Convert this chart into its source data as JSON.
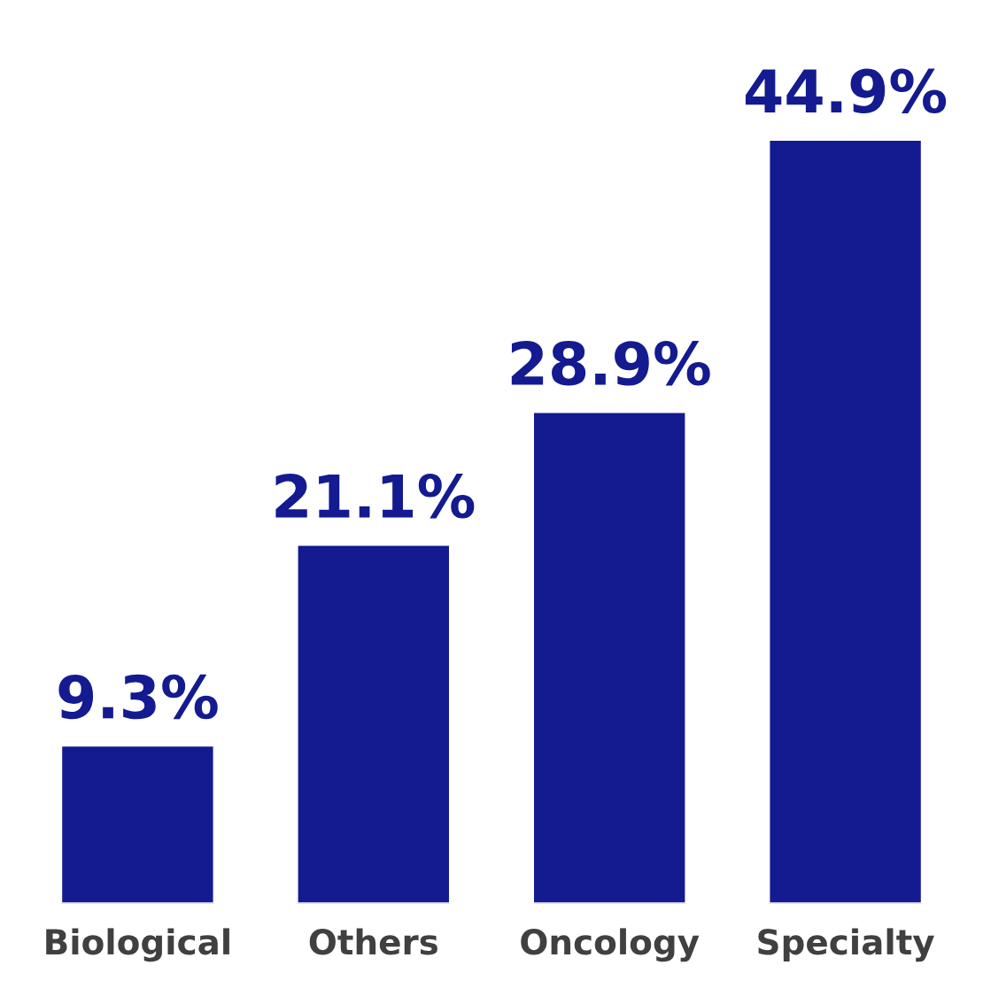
{
  "chart_data": {
    "type": "bar",
    "categories": [
      "Biological",
      "Others",
      "Oncology",
      "Specialty"
    ],
    "values": [
      9.3,
      21.1,
      28.9,
      44.9
    ],
    "value_labels": [
      "9.3%",
      "21.1%",
      "28.9%",
      "44.9%"
    ],
    "color": "#141a8f",
    "grid": false,
    "legend": false
  }
}
